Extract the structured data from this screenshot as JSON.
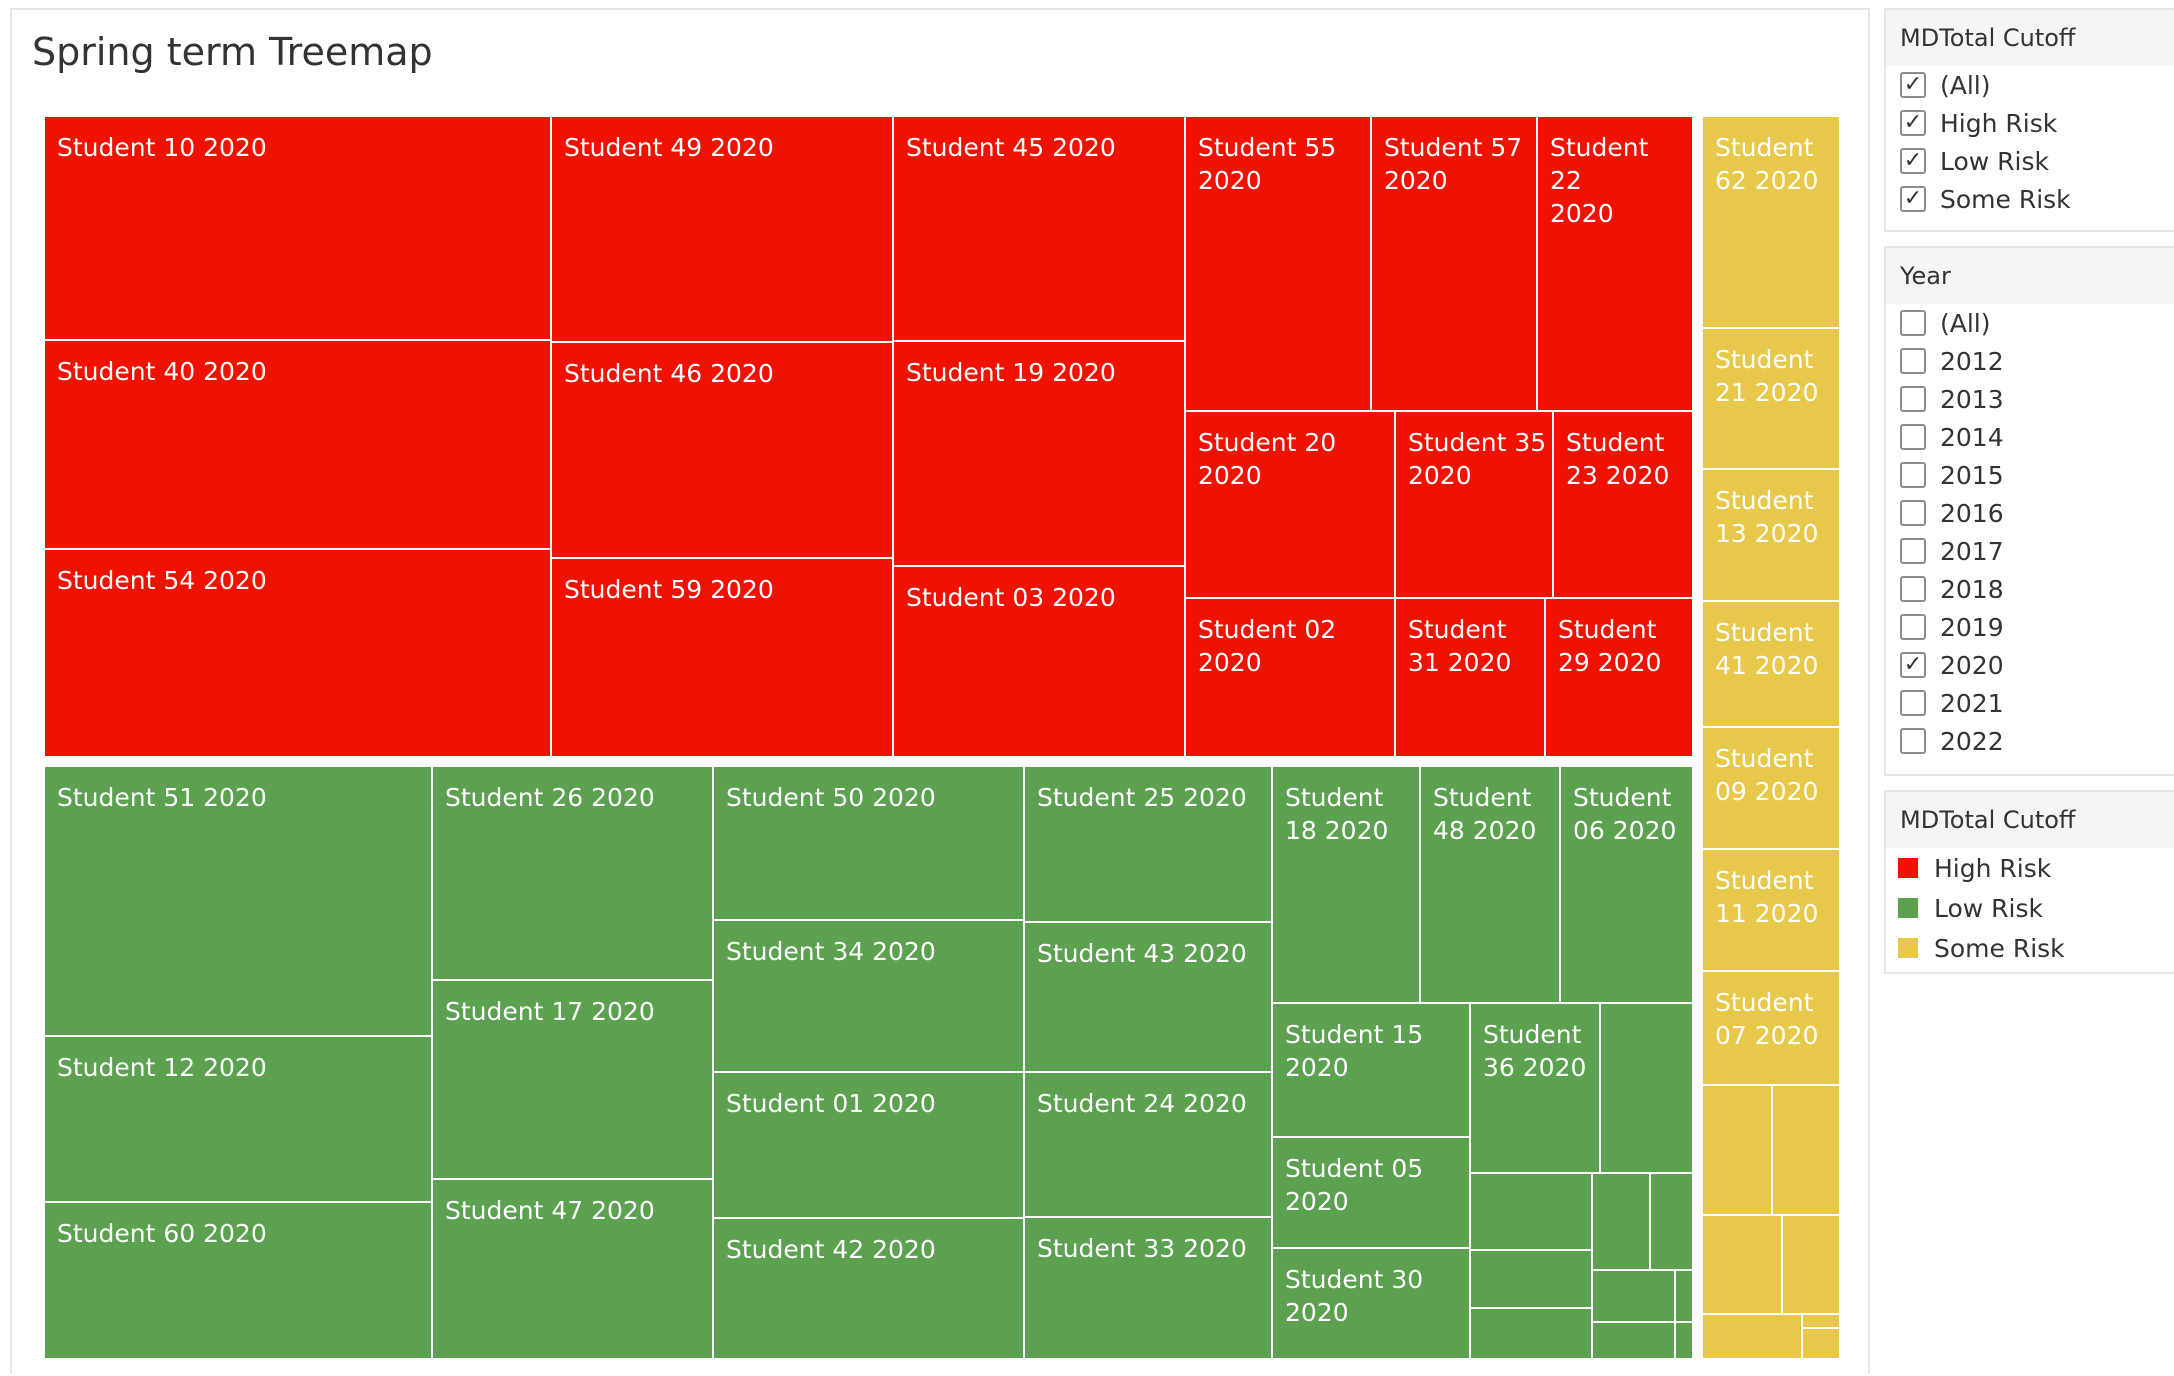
{
  "title": "Spring term Treemap",
  "colors": {
    "High Risk": "#f01100",
    "Low Risk": "#5ba150",
    "Some Risk": "#e8c84a"
  },
  "filters": {
    "cutoff": {
      "header": "MDTotal Cutoff",
      "options": [
        {
          "label": "(All)",
          "checked": true
        },
        {
          "label": "High Risk",
          "checked": true
        },
        {
          "label": "Low Risk",
          "checked": true
        },
        {
          "label": "Some Risk",
          "checked": true
        }
      ]
    },
    "year": {
      "header": "Year",
      "options": [
        {
          "label": "(All)",
          "checked": false
        },
        {
          "label": "2012",
          "checked": false
        },
        {
          "label": "2013",
          "checked": false
        },
        {
          "label": "2014",
          "checked": false
        },
        {
          "label": "2015",
          "checked": false
        },
        {
          "label": "2016",
          "checked": false
        },
        {
          "label": "2017",
          "checked": false
        },
        {
          "label": "2018",
          "checked": false
        },
        {
          "label": "2019",
          "checked": false
        },
        {
          "label": "2020",
          "checked": true
        },
        {
          "label": "2021",
          "checked": false
        },
        {
          "label": "2022",
          "checked": false
        }
      ]
    }
  },
  "legend": {
    "header": "MDTotal Cutoff",
    "items": [
      {
        "label": "High Risk",
        "color": "#f01100"
      },
      {
        "label": "Low Risk",
        "color": "#5ba150"
      },
      {
        "label": "Some Risk",
        "color": "#e8c84a"
      }
    ]
  },
  "chart_data": {
    "type": "treemap",
    "title": "Spring term Treemap",
    "color_by": "MDTotal Cutoff",
    "groups": [
      {
        "name": "High Risk",
        "labeled_tiles": [
          "Student 10 2020",
          "Student 40 2020",
          "Student 54 2020",
          "Student 49 2020",
          "Student 46 2020",
          "Student 59 2020",
          "Student 45 2020",
          "Student 19 2020",
          "Student 03 2020",
          "Student 55 2020",
          "Student 57 2020",
          "Student 22 2020",
          "Student 20 2020",
          "Student 35 2020",
          "Student 23 2020",
          "Student 02 2020",
          "Student 31 2020",
          "Student 29 2020"
        ]
      },
      {
        "name": "Low Risk",
        "labeled_tiles": [
          "Student 51 2020",
          "Student 12 2020",
          "Student 60 2020",
          "Student 26 2020",
          "Student 17 2020",
          "Student 47 2020",
          "Student 50 2020",
          "Student 34 2020",
          "Student 01 2020",
          "Student 42 2020",
          "Student 25 2020",
          "Student 43 2020",
          "Student 24 2020",
          "Student 33 2020",
          "Student 18 2020",
          "Student 48 2020",
          "Student 06 2020",
          "Student 15 2020",
          "Student 05 2020",
          "Student 30 2020",
          "Student 36 2020"
        ],
        "unlabeled_tiles": 11
      },
      {
        "name": "Some Risk",
        "labeled_tiles": [
          "Student 62 2020",
          "Student 21 2020",
          "Student 13 2020",
          "Student 41 2020",
          "Student 09 2020",
          "Student 11 2020",
          "Student 07 2020"
        ],
        "unlabeled_tiles": 7
      }
    ]
  }
}
